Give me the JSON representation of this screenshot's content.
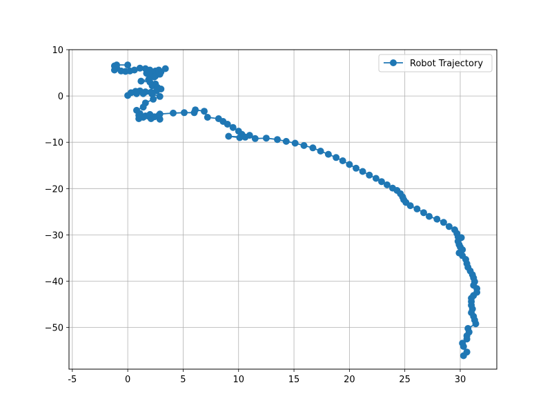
{
  "chart_data": {
    "type": "line",
    "title": "",
    "xlabel": "",
    "ylabel": "",
    "xlim": [
      -5.3,
      33.3
    ],
    "ylim": [
      -59,
      10
    ],
    "xticks": [
      -5,
      0,
      5,
      10,
      15,
      20,
      25,
      30
    ],
    "yticks": [
      10,
      0,
      -10,
      -20,
      -30,
      -40,
      -50
    ],
    "grid": true,
    "legend": "top-right",
    "series": [
      {
        "name": "Robot Trajectory",
        "color": "#1f77b4",
        "marker": "circle",
        "points": [
          [
            0.0,
            6.7
          ],
          [
            -1.0,
            6.7
          ],
          [
            -1.2,
            6.5
          ],
          [
            -1.0,
            6.0
          ],
          [
            -1.2,
            5.6
          ],
          [
            -0.6,
            5.4
          ],
          [
            -0.2,
            5.3
          ],
          [
            0.2,
            5.4
          ],
          [
            0.6,
            5.6
          ],
          [
            1.1,
            6.0
          ],
          [
            1.6,
            5.9
          ],
          [
            2.0,
            5.6
          ],
          [
            2.5,
            5.4
          ],
          [
            3.0,
            5.2
          ],
          [
            3.4,
            5.9
          ],
          [
            2.8,
            5.6
          ],
          [
            2.2,
            5.2
          ],
          [
            1.7,
            4.9
          ],
          [
            2.0,
            4.5
          ],
          [
            2.5,
            4.3
          ],
          [
            2.9,
            4.7
          ],
          [
            2.4,
            4.1
          ],
          [
            1.9,
            3.6
          ],
          [
            1.2,
            3.2
          ],
          [
            2.0,
            3.0
          ],
          [
            2.5,
            2.6
          ],
          [
            2.2,
            2.2
          ],
          [
            2.7,
            1.8
          ],
          [
            3.0,
            1.5
          ],
          [
            2.6,
            1.1
          ],
          [
            2.1,
            0.8
          ],
          [
            1.6,
            0.9
          ],
          [
            1.1,
            1.1
          ],
          [
            0.7,
            1.0
          ],
          [
            0.3,
            0.7
          ],
          [
            0.0,
            0.1
          ],
          [
            0.8,
            0.5
          ],
          [
            1.4,
            0.5
          ],
          [
            2.2,
            0.4
          ],
          [
            2.9,
            -0.1
          ],
          [
            2.3,
            -0.7
          ],
          [
            1.6,
            -1.5
          ],
          [
            1.4,
            -2.4
          ],
          [
            0.8,
            -3.1
          ],
          [
            1.1,
            -3.8
          ],
          [
            1.6,
            -4.3
          ],
          [
            2.1,
            -4.9
          ],
          [
            2.8,
            -4.2
          ],
          [
            2.9,
            -5.0
          ],
          [
            2.4,
            -4.5
          ],
          [
            1.9,
            -4.4
          ],
          [
            1.4,
            -4.6
          ],
          [
            1.0,
            -4.9
          ],
          [
            1.0,
            -4.2
          ],
          [
            2.0,
            -4.0
          ],
          [
            2.9,
            -3.9
          ],
          [
            4.1,
            -3.7
          ],
          [
            5.1,
            -3.6
          ],
          [
            6.0,
            -3.6
          ],
          [
            6.1,
            -3.0
          ],
          [
            6.9,
            -3.3
          ],
          [
            7.2,
            -4.6
          ],
          [
            8.2,
            -4.9
          ],
          [
            8.6,
            -5.5
          ],
          [
            9.0,
            -6.1
          ],
          [
            9.5,
            -6.8
          ],
          [
            10.0,
            -7.6
          ],
          [
            10.3,
            -8.3
          ],
          [
            10.1,
            -9.0
          ],
          [
            9.1,
            -8.7
          ],
          [
            10.6,
            -8.9
          ],
          [
            11.0,
            -8.5
          ],
          [
            11.5,
            -9.2
          ],
          [
            12.5,
            -9.1
          ],
          [
            13.5,
            -9.4
          ],
          [
            14.3,
            -9.8
          ],
          [
            15.1,
            -10.2
          ],
          [
            15.9,
            -10.7
          ],
          [
            16.7,
            -11.2
          ],
          [
            17.4,
            -11.9
          ],
          [
            18.1,
            -12.6
          ],
          [
            18.8,
            -13.3
          ],
          [
            19.4,
            -14.0
          ],
          [
            20.0,
            -14.8
          ],
          [
            20.6,
            -15.6
          ],
          [
            21.2,
            -16.3
          ],
          [
            21.8,
            -17.1
          ],
          [
            22.4,
            -17.8
          ],
          [
            22.9,
            -18.5
          ],
          [
            23.4,
            -19.2
          ],
          [
            23.9,
            -19.9
          ],
          [
            24.3,
            -20.4
          ],
          [
            24.6,
            -21.1
          ],
          [
            24.8,
            -21.8
          ],
          [
            24.9,
            -22.4
          ],
          [
            25.1,
            -23.0
          ],
          [
            25.5,
            -23.7
          ],
          [
            26.1,
            -24.4
          ],
          [
            26.7,
            -25.2
          ],
          [
            27.2,
            -26.0
          ],
          [
            27.9,
            -26.6
          ],
          [
            28.5,
            -27.3
          ],
          [
            29.0,
            -28.2
          ],
          [
            29.5,
            -28.9
          ],
          [
            29.7,
            -29.7
          ],
          [
            29.8,
            -30.4
          ],
          [
            30.1,
            -30.6
          ],
          [
            29.8,
            -31.4
          ],
          [
            29.9,
            -32.1
          ],
          [
            30.0,
            -32.6
          ],
          [
            30.2,
            -33.2
          ],
          [
            29.9,
            -33.9
          ],
          [
            30.2,
            -34.5
          ],
          [
            30.5,
            -35.3
          ],
          [
            30.6,
            -36.2
          ],
          [
            30.7,
            -37.0
          ],
          [
            30.9,
            -37.8
          ],
          [
            31.1,
            -38.6
          ],
          [
            31.2,
            -39.3
          ],
          [
            31.3,
            -40.1
          ],
          [
            31.2,
            -40.9
          ],
          [
            31.5,
            -41.6
          ],
          [
            31.5,
            -42.4
          ],
          [
            31.2,
            -43.1
          ],
          [
            31.0,
            -43.7
          ],
          [
            31.0,
            -44.4
          ],
          [
            31.0,
            -45.2
          ],
          [
            31.1,
            -46.0
          ],
          [
            31.0,
            -46.8
          ],
          [
            31.2,
            -47.6
          ],
          [
            31.3,
            -48.4
          ],
          [
            31.4,
            -49.2
          ],
          [
            30.7,
            -50.2
          ],
          [
            30.8,
            -51.0
          ],
          [
            30.6,
            -51.8
          ],
          [
            30.6,
            -52.5
          ],
          [
            30.2,
            -53.4
          ],
          [
            30.3,
            -54.1
          ],
          [
            30.6,
            -55.3
          ],
          [
            30.3,
            -56.1
          ]
        ]
      }
    ]
  }
}
